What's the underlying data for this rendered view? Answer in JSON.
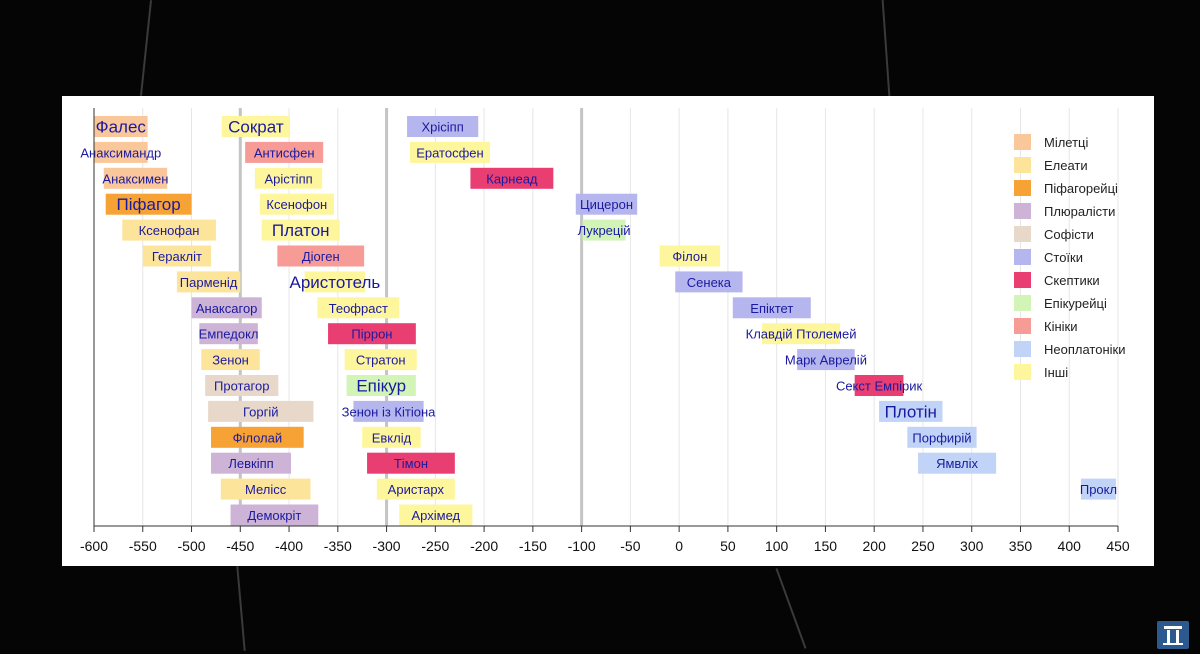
{
  "chart_data": {
    "type": "timeline",
    "title": "",
    "xlabel": "",
    "ylabel": "",
    "xlim": [
      -600,
      450
    ],
    "x_ticks": [
      -600,
      -550,
      -500,
      -450,
      -400,
      -350,
      -300,
      -250,
      -200,
      -150,
      -100,
      -50,
      0,
      50,
      100,
      150,
      200,
      250,
      300,
      350,
      400,
      450
    ],
    "x_tick_labels": [
      "-600",
      "-550",
      "-500",
      "-450",
      "-400",
      "-350",
      "-300",
      "-250",
      "-200",
      "-150",
      "-100",
      "-50",
      "0",
      "50",
      "100",
      "150",
      "200",
      "250",
      "300",
      "350",
      "400",
      "450"
    ],
    "highlight_lines": [
      -450,
      -300,
      -100
    ],
    "schools": [
      {
        "key": "miletus",
        "label": "Мілетці",
        "color": "#f9c79a"
      },
      {
        "key": "eleatics",
        "label": "Елеати",
        "color": "#fde49b"
      },
      {
        "key": "pythagoreans",
        "label": "Піфагорейці",
        "color": "#f7a234"
      },
      {
        "key": "pluralists",
        "label": "Плюралісти",
        "color": "#cdb3d6"
      },
      {
        "key": "sophists",
        "label": "Софісти",
        "color": "#e8d8c9"
      },
      {
        "key": "stoics",
        "label": "Стоїки",
        "color": "#b6b6ef"
      },
      {
        "key": "skeptics",
        "label": "Скептики",
        "color": "#e93e72"
      },
      {
        "key": "epicureans",
        "label": "Епікурейці",
        "color": "#d2f5b7"
      },
      {
        "key": "cynics",
        "label": "Кініки",
        "color": "#f69b96"
      },
      {
        "key": "neoplatonists",
        "label": "Неоплатоніки",
        "color": "#c1d3f7"
      },
      {
        "key": "others",
        "label": "Інші",
        "color": "#fef69d"
      }
    ],
    "philosophers": [
      {
        "name": "Фалес",
        "start": -600,
        "end": -545,
        "school": "miletus",
        "big": true
      },
      {
        "name": "Анаксимандр",
        "start": -600,
        "end": -545,
        "school": "miletus"
      },
      {
        "name": "Анаксимен",
        "start": -590,
        "end": -525,
        "school": "miletus"
      },
      {
        "name": "Піфагор",
        "start": -588,
        "end": -500,
        "school": "pythagoreans",
        "big": true
      },
      {
        "name": "Ксенофан",
        "start": -571,
        "end": -475,
        "school": "eleatics"
      },
      {
        "name": "Геракліт",
        "start": -550,
        "end": -480,
        "school": "eleatics"
      },
      {
        "name": "Парменід",
        "start": -515,
        "end": -450,
        "school": "eleatics"
      },
      {
        "name": "Анаксагор",
        "start": -500,
        "end": -428,
        "school": "pluralists"
      },
      {
        "name": "Емпедокл",
        "start": -492,
        "end": -432,
        "school": "pluralists"
      },
      {
        "name": "Зенон",
        "start": -490,
        "end": -430,
        "school": "eleatics"
      },
      {
        "name": "Протагор",
        "start": -486,
        "end": -411,
        "school": "sophists"
      },
      {
        "name": "Горгій",
        "start": -483,
        "end": -375,
        "school": "sophists"
      },
      {
        "name": "Філолай",
        "start": -480,
        "end": -385,
        "school": "pythagoreans"
      },
      {
        "name": "Левкіпп",
        "start": -480,
        "end": -398,
        "school": "pluralists"
      },
      {
        "name": "Меліcс",
        "start": -470,
        "end": -378,
        "school": "eleatics"
      },
      {
        "name": "Демокріт",
        "start": -460,
        "end": -370,
        "school": "pluralists"
      },
      {
        "name": "Сократ",
        "start": -469,
        "end": -399,
        "school": "others",
        "big": true
      },
      {
        "name": "Антисфен",
        "start": -445,
        "end": -365,
        "school": "cynics"
      },
      {
        "name": "Арістіпп",
        "start": -435,
        "end": -366,
        "school": "others"
      },
      {
        "name": "Ксенофон",
        "start": -430,
        "end": -354,
        "school": "others"
      },
      {
        "name": "Платон",
        "start": -428,
        "end": -348,
        "school": "others",
        "big": true
      },
      {
        "name": "Діоген",
        "start": -412,
        "end": -323,
        "school": "cynics"
      },
      {
        "name": "Аристотель",
        "start": -384,
        "end": -322,
        "school": "others",
        "big": true
      },
      {
        "name": "Теофраст",
        "start": -371,
        "end": -287,
        "school": "others"
      },
      {
        "name": "Піррон",
        "start": -360,
        "end": -270,
        "school": "skeptics"
      },
      {
        "name": "Стратон",
        "start": -343,
        "end": -269,
        "school": "others"
      },
      {
        "name": "Епікур",
        "start": -341,
        "end": -270,
        "school": "epicureans",
        "big": true
      },
      {
        "name": "Зенон із Кітіона",
        "start": -334,
        "end": -262,
        "school": "stoics"
      },
      {
        "name": "Евклід",
        "start": -325,
        "end": -265,
        "school": "others"
      },
      {
        "name": "Тімон",
        "start": -320,
        "end": -230,
        "school": "skeptics"
      },
      {
        "name": "Аристарх",
        "start": -310,
        "end": -230,
        "school": "others"
      },
      {
        "name": "Архімед",
        "start": -287,
        "end": -212,
        "school": "others"
      },
      {
        "name": "Хрісіпп",
        "start": -279,
        "end": -206,
        "school": "stoics"
      },
      {
        "name": "Ератосфен",
        "start": -276,
        "end": -194,
        "school": "others"
      },
      {
        "name": "Карнеад",
        "start": -214,
        "end": -129,
        "school": "skeptics"
      },
      {
        "name": "Цицерон",
        "start": -106,
        "end": -43,
        "school": "stoics"
      },
      {
        "name": "Лукрецій",
        "start": -99,
        "end": -55,
        "school": "epicureans"
      },
      {
        "name": "Філон",
        "start": -20,
        "end": 42,
        "school": "others"
      },
      {
        "name": "Сенека",
        "start": -4,
        "end": 65,
        "school": "stoics"
      },
      {
        "name": "Епіктет",
        "start": 55,
        "end": 135,
        "school": "stoics"
      },
      {
        "name": "Клавдій Птолемей",
        "start": 85,
        "end": 165,
        "school": "others"
      },
      {
        "name": "Марк Аврелій",
        "start": 121,
        "end": 180,
        "school": "stoics"
      },
      {
        "name": "Секст Емпірик",
        "start": 180,
        "end": 230,
        "school": "skeptics"
      },
      {
        "name": "Плотін",
        "start": 205,
        "end": 270,
        "school": "neoplatonists",
        "big": true
      },
      {
        "name": "Порфирій",
        "start": 234,
        "end": 305,
        "school": "neoplatonists"
      },
      {
        "name": "Ямвліх",
        "start": 245,
        "end": 325,
        "school": "neoplatonists"
      },
      {
        "name": "Прокл",
        "start": 412,
        "end": 485,
        "school": "neoplatonists"
      }
    ]
  }
}
